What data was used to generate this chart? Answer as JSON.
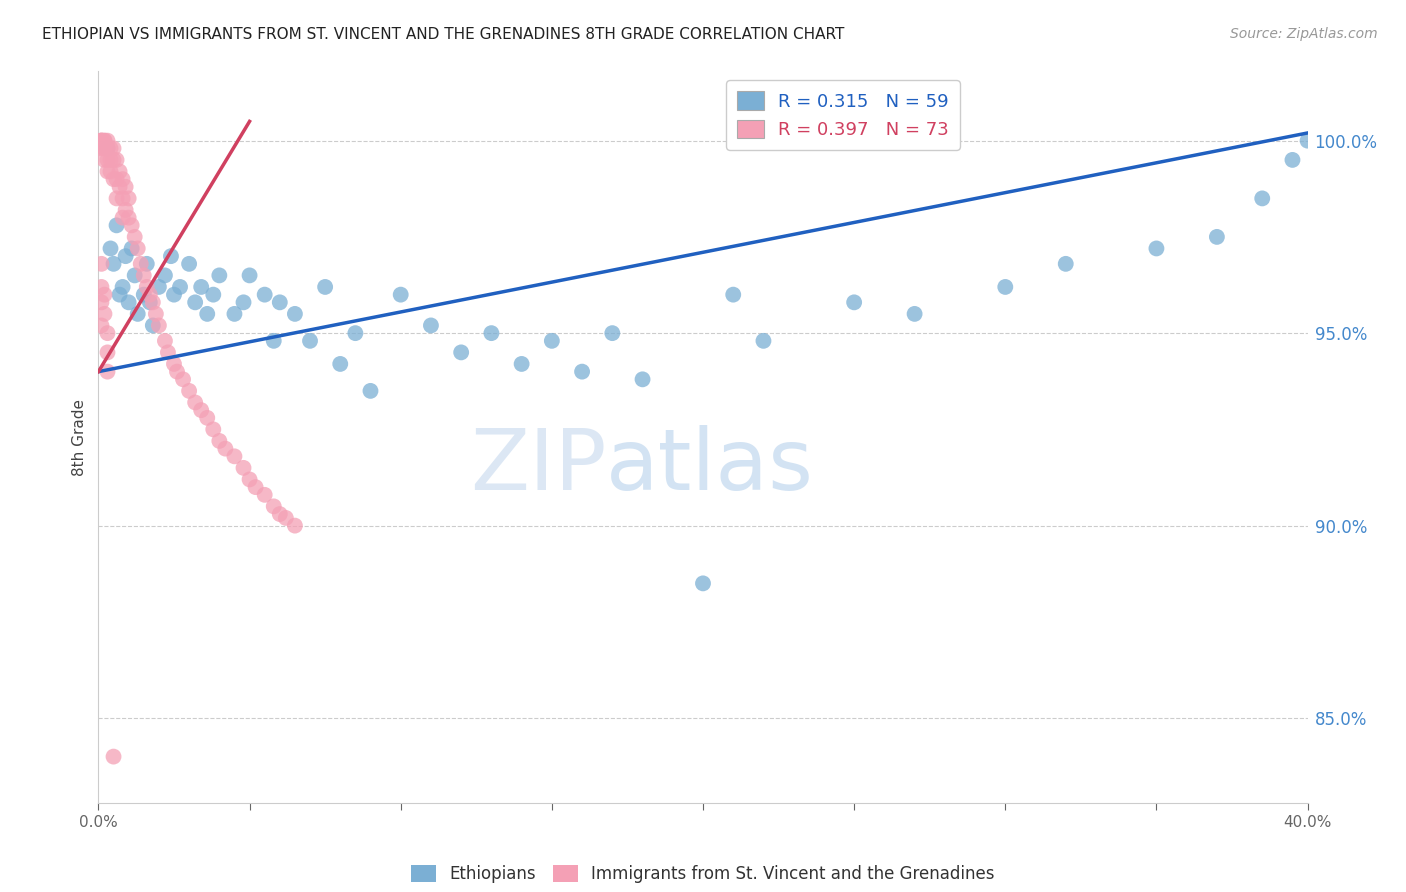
{
  "title": "ETHIOPIAN VS IMMIGRANTS FROM ST. VINCENT AND THE GRENADINES 8TH GRADE CORRELATION CHART",
  "source": "Source: ZipAtlas.com",
  "ylabel": "8th Grade",
  "x_min": 0.0,
  "x_max": 0.4,
  "y_min": 0.828,
  "y_max": 1.018,
  "yticks": [
    0.85,
    0.9,
    0.95,
    1.0
  ],
  "ytick_labels": [
    "85.0%",
    "90.0%",
    "95.0%",
    "100.0%"
  ],
  "xticks": [
    0.0,
    0.05,
    0.1,
    0.15,
    0.2,
    0.25,
    0.3,
    0.35,
    0.4
  ],
  "blue_R": 0.315,
  "blue_N": 59,
  "pink_R": 0.397,
  "pink_N": 73,
  "blue_color": "#7bafd4",
  "pink_color": "#f4a0b5",
  "blue_line_color": "#2060c0",
  "pink_line_color": "#d04060",
  "legend_blue_label": "Ethiopians",
  "legend_pink_label": "Immigrants from St. Vincent and the Grenadines",
  "watermark_zip": "ZIP",
  "watermark_atlas": "atlas",
  "blue_line_x0": 0.0,
  "blue_line_y0": 0.94,
  "blue_line_x1": 0.4,
  "blue_line_y1": 1.002,
  "pink_line_x0": 0.0,
  "pink_line_y0": 0.94,
  "pink_line_x1": 0.05,
  "pink_line_y1": 1.005,
  "blue_x": [
    0.003,
    0.004,
    0.005,
    0.006,
    0.007,
    0.008,
    0.009,
    0.01,
    0.011,
    0.012,
    0.013,
    0.015,
    0.016,
    0.017,
    0.018,
    0.02,
    0.022,
    0.024,
    0.025,
    0.027,
    0.03,
    0.032,
    0.034,
    0.036,
    0.038,
    0.04,
    0.045,
    0.048,
    0.05,
    0.055,
    0.058,
    0.06,
    0.065,
    0.07,
    0.075,
    0.08,
    0.085,
    0.09,
    0.1,
    0.11,
    0.12,
    0.13,
    0.14,
    0.15,
    0.16,
    0.17,
    0.18,
    0.2,
    0.21,
    0.22,
    0.25,
    0.27,
    0.3,
    0.32,
    0.35,
    0.37,
    0.385,
    0.395,
    0.4
  ],
  "blue_y": [
    0.998,
    0.972,
    0.968,
    0.978,
    0.96,
    0.962,
    0.97,
    0.958,
    0.972,
    0.965,
    0.955,
    0.96,
    0.968,
    0.958,
    0.952,
    0.962,
    0.965,
    0.97,
    0.96,
    0.962,
    0.968,
    0.958,
    0.962,
    0.955,
    0.96,
    0.965,
    0.955,
    0.958,
    0.965,
    0.96,
    0.948,
    0.958,
    0.955,
    0.948,
    0.962,
    0.942,
    0.95,
    0.935,
    0.96,
    0.952,
    0.945,
    0.95,
    0.942,
    0.948,
    0.94,
    0.95,
    0.938,
    0.885,
    0.96,
    0.948,
    0.958,
    0.955,
    0.962,
    0.968,
    0.972,
    0.975,
    0.985,
    0.995,
    1.0
  ],
  "pink_x": [
    0.001,
    0.001,
    0.001,
    0.001,
    0.001,
    0.002,
    0.002,
    0.002,
    0.002,
    0.002,
    0.003,
    0.003,
    0.003,
    0.003,
    0.004,
    0.004,
    0.004,
    0.005,
    0.005,
    0.005,
    0.006,
    0.006,
    0.006,
    0.007,
    0.007,
    0.008,
    0.008,
    0.008,
    0.009,
    0.009,
    0.01,
    0.01,
    0.011,
    0.012,
    0.013,
    0.014,
    0.015,
    0.016,
    0.017,
    0.018,
    0.019,
    0.02,
    0.022,
    0.023,
    0.025,
    0.026,
    0.028,
    0.03,
    0.032,
    0.034,
    0.036,
    0.038,
    0.04,
    0.042,
    0.045,
    0.048,
    0.05,
    0.052,
    0.055,
    0.058,
    0.06,
    0.062,
    0.065,
    0.001,
    0.001,
    0.001,
    0.001,
    0.002,
    0.002,
    0.003,
    0.003,
    0.003,
    0.005
  ],
  "pink_y": [
    1.0,
    1.0,
    1.0,
    1.0,
    0.998,
    1.0,
    1.0,
    0.998,
    0.998,
    0.995,
    1.0,
    0.998,
    0.995,
    0.992,
    0.998,
    0.995,
    0.992,
    0.998,
    0.995,
    0.99,
    0.995,
    0.99,
    0.985,
    0.992,
    0.988,
    0.99,
    0.985,
    0.98,
    0.988,
    0.982,
    0.985,
    0.98,
    0.978,
    0.975,
    0.972,
    0.968,
    0.965,
    0.962,
    0.96,
    0.958,
    0.955,
    0.952,
    0.948,
    0.945,
    0.942,
    0.94,
    0.938,
    0.935,
    0.932,
    0.93,
    0.928,
    0.925,
    0.922,
    0.92,
    0.918,
    0.915,
    0.912,
    0.91,
    0.908,
    0.905,
    0.903,
    0.902,
    0.9,
    0.968,
    0.962,
    0.958,
    0.952,
    0.96,
    0.955,
    0.95,
    0.945,
    0.94,
    0.84
  ]
}
